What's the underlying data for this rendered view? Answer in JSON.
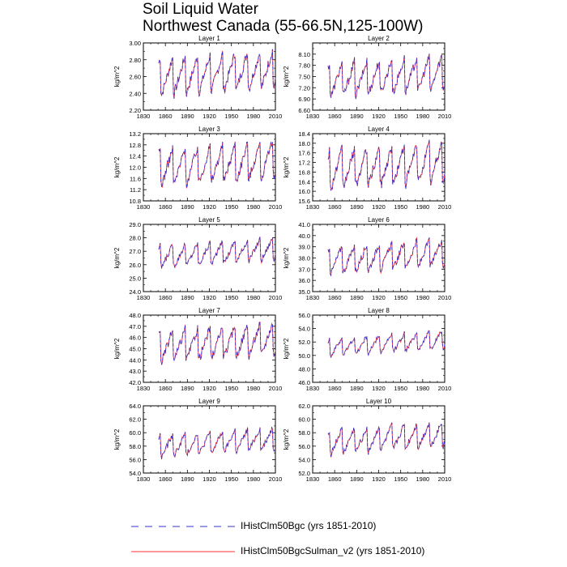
{
  "title": {
    "line1": "Soil Liquid Water",
    "line2": "Northwest Canada (55-66.5N,125-100W)"
  },
  "legend": [
    {
      "label": "IHistClm50Bgc (yrs 1851-2010)",
      "color": "#3333cc",
      "style": "dashed"
    },
    {
      "label": "IHistClm50BgcSulman_v2 (yrs 1851-2010)",
      "color": "#ff3333",
      "style": "solid"
    }
  ],
  "chart_data": [
    {
      "type": "line",
      "title": "Layer 1",
      "ylabel": "kg/m^2",
      "xlim": [
        1830,
        2010
      ],
      "ylim": [
        2.2,
        3.0
      ],
      "xticks": [
        "1830",
        "1860",
        "1890",
        "1920",
        "1950",
        "1980",
        "2010"
      ],
      "yticks": [
        "2.20",
        "2.40",
        "2.60",
        "2.80",
        "3.00"
      ],
      "base": 2.6,
      "amp": 0.22,
      "min": 2.28,
      "max": 2.95,
      "series": [
        {
          "name": "IHistClm50Bgc (yrs 1851-2010)"
        },
        {
          "name": "IHistClm50BgcSulman_v2 (yrs 1851-2010)"
        }
      ]
    },
    {
      "type": "line",
      "title": "Layer 2",
      "ylabel": "kg/m^2",
      "xlim": [
        1830,
        2010
      ],
      "ylim": [
        6.6,
        8.4
      ],
      "xticks": [
        "1830",
        "1860",
        "1890",
        "1920",
        "1950",
        "1980",
        "2010"
      ],
      "yticks": [
        "6.60",
        "6.90",
        "7.20",
        "7.50",
        "7.80",
        "8.10"
      ],
      "base": 7.4,
      "amp": 0.45,
      "min": 6.7,
      "max": 8.1,
      "series": [
        {
          "name": "IHistClm50Bgc (yrs 1851-2010)"
        },
        {
          "name": "IHistClm50BgcSulman_v2 (yrs 1851-2010)"
        }
      ]
    },
    {
      "type": "line",
      "title": "Layer 3",
      "ylabel": "kg/m^2",
      "xlim": [
        1830,
        2010
      ],
      "ylim": [
        10.8,
        13.2
      ],
      "xticks": [
        "1830",
        "1860",
        "1890",
        "1920",
        "1950",
        "1980",
        "2010"
      ],
      "yticks": [
        "10.8",
        "11.2",
        "11.6",
        "12.0",
        "12.4",
        "12.8",
        "13.2"
      ],
      "base": 12.0,
      "amp": 0.65,
      "min": 10.9,
      "max": 12.9,
      "series": [
        {
          "name": "IHistClm50Bgc (yrs 1851-2010)"
        },
        {
          "name": "IHistClm50BgcSulman_v2 (yrs 1851-2010)"
        }
      ]
    },
    {
      "type": "line",
      "title": "Layer 4",
      "ylabel": "kg/m^2",
      "xlim": [
        1830,
        2010
      ],
      "ylim": [
        15.6,
        18.4
      ],
      "xticks": [
        "1830",
        "1860",
        "1890",
        "1920",
        "1950",
        "1980",
        "2010"
      ],
      "yticks": [
        "15.6",
        "16.0",
        "16.4",
        "16.8",
        "17.2",
        "17.6",
        "18.0",
        "18.4"
      ],
      "base": 16.9,
      "amp": 0.8,
      "min": 15.7,
      "max": 18.3,
      "series": [
        {
          "name": "IHistClm50Bgc (yrs 1851-2010)"
        },
        {
          "name": "IHistClm50BgcSulman_v2 (yrs 1851-2010)"
        }
      ]
    },
    {
      "type": "line",
      "title": "Layer 5",
      "ylabel": "kg/m^2",
      "xlim": [
        1830,
        2010
      ],
      "ylim": [
        24.0,
        29.0
      ],
      "xticks": [
        "1830",
        "1860",
        "1890",
        "1920",
        "1950",
        "1980",
        "2010"
      ],
      "yticks": [
        "24.0",
        "25.0",
        "26.0",
        "27.0",
        "28.0",
        "29.0"
      ],
      "base": 26.6,
      "amp": 0.8,
      "min": 24.8,
      "max": 28.5,
      "series": [
        {
          "name": "IHistClm50Bgc (yrs 1851-2010)"
        },
        {
          "name": "IHistClm50BgcSulman_v2 (yrs 1851-2010)"
        }
      ]
    },
    {
      "type": "line",
      "title": "Layer 6",
      "ylabel": "kg/m^2",
      "xlim": [
        1830,
        2010
      ],
      "ylim": [
        35.0,
        41.0
      ],
      "xticks": [
        "1830",
        "1860",
        "1890",
        "1920",
        "1950",
        "1980",
        "2010"
      ],
      "yticks": [
        "35.0",
        "36.0",
        "37.0",
        "38.0",
        "39.0",
        "40.0",
        "41.0"
      ],
      "base": 37.8,
      "amp": 1.2,
      "min": 35.4,
      "max": 40.2,
      "series": [
        {
          "name": "IHistClm50Bgc (yrs 1851-2010)"
        },
        {
          "name": "IHistClm50BgcSulman_v2 (yrs 1851-2010)"
        }
      ]
    },
    {
      "type": "line",
      "title": "Layer 7",
      "ylabel": "kg/m^2",
      "xlim": [
        1830,
        2010
      ],
      "ylim": [
        42.0,
        48.0
      ],
      "xticks": [
        "1830",
        "1860",
        "1890",
        "1920",
        "1950",
        "1980",
        "2010"
      ],
      "yticks": [
        "42.0",
        "43.0",
        "44.0",
        "45.0",
        "46.0",
        "47.0",
        "48.0"
      ],
      "base": 45.2,
      "amp": 1.4,
      "min": 42.3,
      "max": 47.8,
      "series": [
        {
          "name": "IHistClm50Bgc (yrs 1851-2010)"
        },
        {
          "name": "IHistClm50BgcSulman_v2 (yrs 1851-2010)"
        }
      ]
    },
    {
      "type": "line",
      "title": "Layer 8",
      "ylabel": "kg/m^2",
      "xlim": [
        1830,
        2010
      ],
      "ylim": [
        46.0,
        56.0
      ],
      "xticks": [
        "1830",
        "1860",
        "1890",
        "1920",
        "1950",
        "1980",
        "2010"
      ],
      "yticks": [
        "46.0",
        "48.0",
        "50.0",
        "52.0",
        "54.0",
        "56.0"
      ],
      "base": 51.2,
      "amp": 1.3,
      "min": 48.0,
      "max": 54.0,
      "series": [
        {
          "name": "IHistClm50Bgc (yrs 1851-2010)"
        },
        {
          "name": "IHistClm50BgcSulman_v2 (yrs 1851-2010)"
        }
      ]
    },
    {
      "type": "line",
      "title": "Layer 9",
      "ylabel": "kg/m^2",
      "xlim": [
        1830,
        2010
      ],
      "ylim": [
        54.0,
        64.0
      ],
      "xticks": [
        "1830",
        "1860",
        "1890",
        "1920",
        "1950",
        "1980",
        "2010"
      ],
      "yticks": [
        "54.0",
        "56.0",
        "58.0",
        "60.0",
        "62.0",
        "64.0"
      ],
      "base": 58.0,
      "amp": 1.6,
      "min": 54.4,
      "max": 62.0,
      "series": [
        {
          "name": "IHistClm50Bgc (yrs 1851-2010)"
        },
        {
          "name": "IHistClm50BgcSulman_v2 (yrs 1851-2010)"
        }
      ]
    },
    {
      "type": "line",
      "title": "Layer 10",
      "ylabel": "kg/m^2",
      "xlim": [
        1830,
        2010
      ],
      "ylim": [
        52.0,
        62.0
      ],
      "xticks": [
        "1830",
        "1860",
        "1890",
        "1920",
        "1950",
        "1980",
        "2010"
      ],
      "yticks": [
        "52.0",
        "54.0",
        "56.0",
        "58.0",
        "60.0",
        "62.0"
      ],
      "base": 56.6,
      "amp": 1.8,
      "min": 52.7,
      "max": 60.6,
      "series": [
        {
          "name": "IHistClm50Bgc (yrs 1851-2010)"
        },
        {
          "name": "IHistClm50BgcSulman_v2 (yrs 1851-2010)"
        }
      ]
    }
  ]
}
